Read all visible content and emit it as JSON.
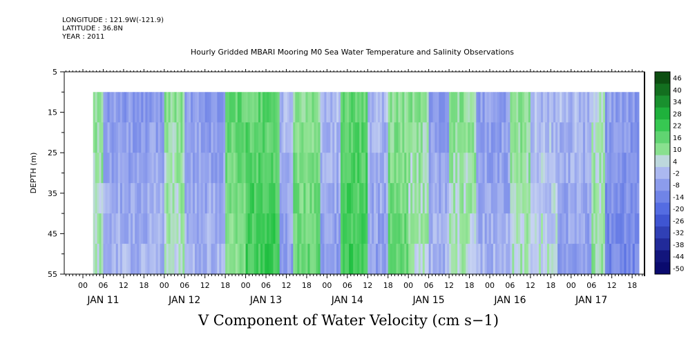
{
  "header": {
    "longitude": "LONGITUDE : 121.9W(-121.9)",
    "latitude": "LATITUDE : 36.8N",
    "year": "YEAR : 2011"
  },
  "chart_data": {
    "type": "heatmap",
    "title": "Hourly Gridded MBARI Mooring M0 Sea Water Temperature and Salinity Observations",
    "xlabel": "",
    "ylabel": "DEPTH (m)",
    "caption": "V Component of Water Velocity (cm s−1)",
    "y_range": [
      5,
      55
    ],
    "y_inverted": true,
    "y_ticks": [
      5,
      15,
      25,
      35,
      45,
      55
    ],
    "hour_ticks": [
      "00",
      "06",
      "12",
      "18",
      "00",
      "06",
      "12",
      "18",
      "00",
      "06",
      "12",
      "18",
      "00",
      "06",
      "12",
      "18",
      "00",
      "06",
      "12",
      "18",
      "00",
      "06",
      "12",
      "18",
      "00",
      "06",
      "12",
      "18"
    ],
    "day_labels": [
      "JAN 11",
      "JAN 12",
      "JAN 13",
      "JAN 14",
      "JAN 15",
      "JAN 16",
      "JAN 17"
    ],
    "colorbar_labels": [
      "46",
      "40",
      "34",
      "28",
      "22",
      "16",
      "10",
      "4",
      "-2",
      "-8",
      "-14",
      "-20",
      "-26",
      "-32",
      "-38",
      "-44",
      "-50"
    ],
    "color_levels": [
      46,
      40,
      34,
      28,
      22,
      16,
      10,
      4,
      -2,
      -8,
      -14,
      -20,
      -26,
      -32,
      -38,
      -44,
      -50
    ],
    "colors": {
      "positive_max": "#0a3d0a",
      "positive_mid": "#22c243",
      "positive_low": "#9ee69e",
      "zero": "#c7d3f2",
      "negative_low": "#9aa8ee",
      "negative_mid": "#4660e0",
      "negative_max": "#0a0a6e"
    },
    "data_depth_range": [
      10,
      55
    ],
    "data_time_range_days": [
      "JAN 11 03:00",
      "JAN 17 20:00"
    ],
    "bands": [
      {
        "start": "JAN 11 03",
        "end": "JAN 11 06",
        "v": 4
      },
      {
        "start": "JAN 11 06",
        "end": "JAN 12 00",
        "v": -8
      },
      {
        "start": "JAN 12 00",
        "end": "JAN 12 06",
        "v": 4
      },
      {
        "start": "JAN 12 06",
        "end": "JAN 12 18",
        "v": -8
      },
      {
        "start": "JAN 12 18",
        "end": "JAN 13 00",
        "v": 10
      },
      {
        "start": "JAN 13 00",
        "end": "JAN 13 10",
        "v": 16
      },
      {
        "start": "JAN 13 10",
        "end": "JAN 13 14",
        "v": -8
      },
      {
        "start": "JAN 13 14",
        "end": "JAN 13 22",
        "v": 10
      },
      {
        "start": "JAN 13 22",
        "end": "JAN 14 04",
        "v": -8
      },
      {
        "start": "JAN 14 04",
        "end": "JAN 14 12",
        "v": 16
      },
      {
        "start": "JAN 14 12",
        "end": "JAN 14 18",
        "v": -8
      },
      {
        "start": "JAN 14 18",
        "end": "JAN 15 00",
        "v": 10
      },
      {
        "start": "JAN 15 00",
        "end": "JAN 15 06",
        "v": 4
      },
      {
        "start": "JAN 15 06",
        "end": "JAN 15 12",
        "v": -8
      },
      {
        "start": "JAN 15 12",
        "end": "JAN 15 20",
        "v": 4
      },
      {
        "start": "JAN 15 20",
        "end": "JAN 16 06",
        "v": -8
      },
      {
        "start": "JAN 16 06",
        "end": "JAN 16 12",
        "v": 4
      },
      {
        "start": "JAN 16 12",
        "end": "JAN 16 20",
        "v": -2
      },
      {
        "start": "JAN 16 20",
        "end": "JAN 17 06",
        "v": -8
      },
      {
        "start": "JAN 17 06",
        "end": "JAN 17 10",
        "v": 4
      },
      {
        "start": "JAN 17 10",
        "end": "JAN 17 20",
        "v": -14
      }
    ]
  }
}
